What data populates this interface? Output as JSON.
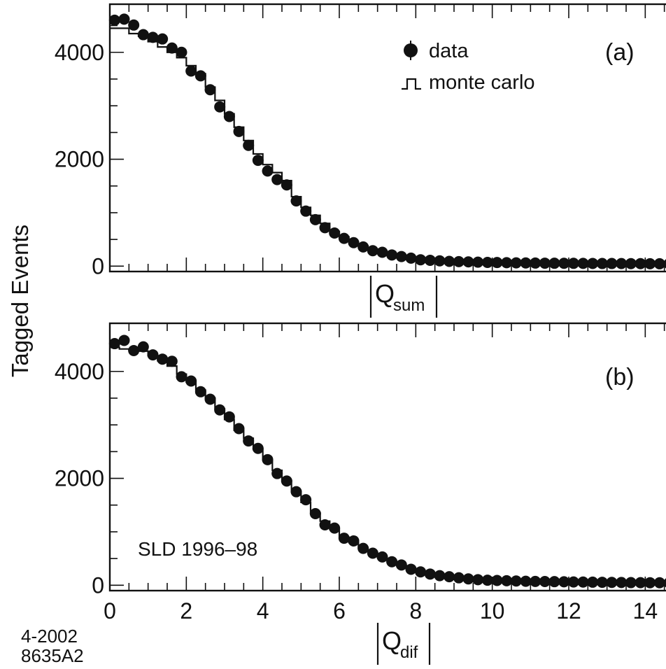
{
  "figure": {
    "ylabel": "Tagged Events",
    "annotation": "SLD 1996–98",
    "figure_code": [
      "4-2002",
      "8635A2"
    ]
  },
  "legend": {
    "data_label": "data",
    "mc_label": "monte carlo"
  },
  "chart_data": [
    {
      "type": "scatter",
      "panel_label": "(a)",
      "xlabel_main": "Q",
      "xlabel_sub": "sum",
      "ylabel": "Tagged Events",
      "xlim": [
        0,
        15
      ],
      "ylim": [
        -100,
        4900
      ],
      "yticks": [
        0,
        2000,
        4000
      ],
      "xtick_labels_shown": false,
      "series": [
        {
          "name": "data",
          "x": [
            0.25,
            0.5,
            0.75,
            1.0,
            1.25,
            1.5,
            1.75,
            2.0,
            2.25,
            2.5,
            2.75,
            3.0,
            3.25,
            3.5,
            3.75,
            4.0,
            4.25,
            4.5,
            4.75,
            5.0,
            5.25,
            5.5,
            5.75,
            6.0,
            6.25,
            6.5,
            6.75,
            7.0,
            7.25,
            7.5,
            7.75,
            8.0,
            8.25,
            8.5,
            8.75,
            9.0,
            9.25,
            9.5,
            9.75,
            10.0,
            10.25,
            10.5,
            10.75,
            11.0,
            11.25,
            11.5,
            11.75,
            12.0,
            12.25,
            12.5,
            12.75,
            13.0,
            13.25,
            13.5,
            13.75,
            14.0,
            14.25,
            14.5,
            14.75,
            15.0
          ],
          "y": [
            4600,
            4620,
            4510,
            4330,
            4280,
            4250,
            4080,
            4000,
            3650,
            3560,
            3300,
            2980,
            2800,
            2520,
            2260,
            1980,
            1780,
            1620,
            1520,
            1220,
            1030,
            870,
            720,
            620,
            520,
            440,
            360,
            290,
            260,
            210,
            180,
            150,
            120,
            110,
            100,
            90,
            85,
            80,
            75,
            70,
            68,
            65,
            62,
            60,
            58,
            56,
            55,
            54,
            53,
            52,
            51,
            50,
            50,
            49,
            48,
            47,
            46,
            45,
            45,
            44
          ]
        },
        {
          "name": "monte carlo",
          "y": [
            4450,
            4450,
            4350,
            4300,
            4200,
            4100,
            4000,
            3900,
            3750,
            3600,
            3350,
            3100,
            2850,
            2600,
            2350,
            2100,
            1900,
            1750,
            1600,
            1300,
            1100,
            950,
            800,
            650,
            550,
            450,
            380,
            320,
            270,
            220,
            180,
            150,
            125,
            110,
            100,
            90,
            85,
            80,
            75,
            70,
            68,
            65,
            62,
            60,
            58,
            56,
            55,
            54,
            53,
            52,
            51,
            50,
            50,
            49,
            48,
            47,
            46,
            45,
            45,
            44
          ]
        }
      ]
    },
    {
      "type": "scatter",
      "panel_label": "(b)",
      "xlabel_main": "Q",
      "xlabel_sub": "dif",
      "ylabel": "Tagged Events",
      "xlim": [
        0,
        15
      ],
      "ylim": [
        -100,
        4900
      ],
      "yticks": [
        0,
        2000,
        4000
      ],
      "xticks": [
        0,
        2,
        4,
        6,
        8,
        10,
        12,
        14
      ],
      "xtick_labels_shown": true,
      "series": [
        {
          "name": "data",
          "x": [
            0.25,
            0.5,
            0.75,
            1.0,
            1.25,
            1.5,
            1.75,
            2.0,
            2.25,
            2.5,
            2.75,
            3.0,
            3.25,
            3.5,
            3.75,
            4.0,
            4.25,
            4.5,
            4.75,
            5.0,
            5.25,
            5.5,
            5.75,
            6.0,
            6.25,
            6.5,
            6.75,
            7.0,
            7.25,
            7.5,
            7.75,
            8.0,
            8.25,
            8.5,
            8.75,
            9.0,
            9.25,
            9.5,
            9.75,
            10.0,
            10.25,
            10.5,
            10.75,
            11.0,
            11.25,
            11.5,
            11.75,
            12.0,
            12.25,
            12.5,
            12.75,
            13.0,
            13.25,
            13.5,
            13.75,
            14.0,
            14.25,
            14.5,
            14.75,
            15.0
          ],
          "y": [
            4520,
            4580,
            4390,
            4460,
            4310,
            4230,
            4190,
            3900,
            3820,
            3620,
            3480,
            3280,
            3150,
            2930,
            2700,
            2560,
            2350,
            2090,
            1950,
            1750,
            1600,
            1340,
            1130,
            1070,
            880,
            830,
            690,
            600,
            530,
            440,
            380,
            300,
            250,
            210,
            180,
            160,
            140,
            120,
            105,
            95,
            90,
            85,
            80,
            75,
            72,
            70,
            68,
            65,
            62,
            60,
            58,
            56,
            54,
            52,
            50,
            49,
            48,
            47,
            46,
            45
          ]
        },
        {
          "name": "monte carlo",
          "y": [
            4450,
            4420,
            4400,
            4380,
            4300,
            4200,
            4100,
            3950,
            3800,
            3650,
            3500,
            3300,
            3100,
            2900,
            2750,
            2550,
            2350,
            2150,
            1950,
            1750,
            1550,
            1350,
            1200,
            1050,
            900,
            800,
            700,
            600,
            520,
            440,
            370,
            310,
            260,
            220,
            185,
            160,
            140,
            120,
            108,
            97,
            90,
            85,
            80,
            76,
            72,
            70,
            68,
            65,
            62,
            60,
            58,
            56,
            54,
            52,
            50,
            49,
            48,
            47,
            46,
            45
          ]
        }
      ]
    }
  ]
}
